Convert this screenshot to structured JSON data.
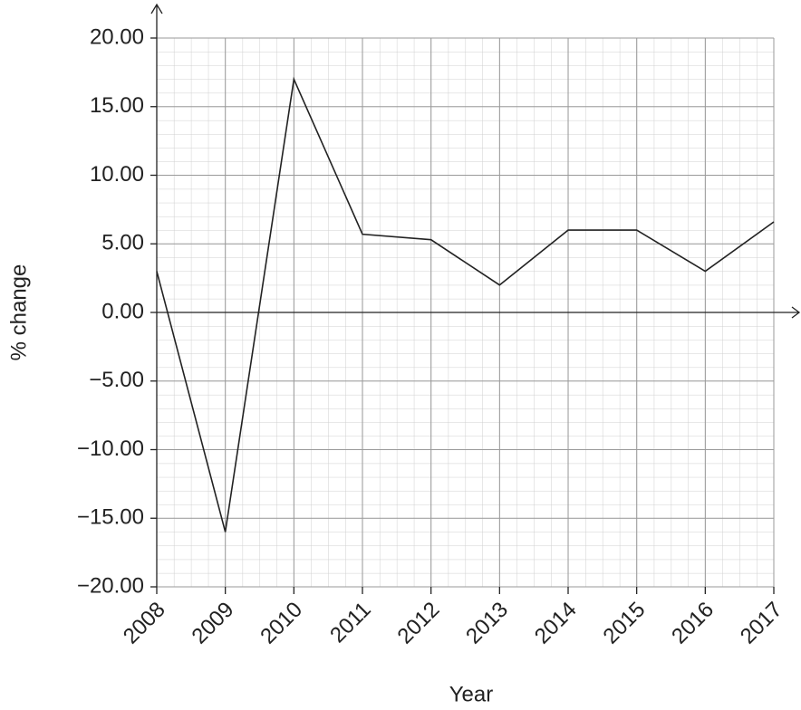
{
  "chart_data": {
    "type": "line",
    "x_label": "Year",
    "y_label": "% change",
    "categories": [
      "2008",
      "2009",
      "2010",
      "2011",
      "2012",
      "2013",
      "2014",
      "2015",
      "2016",
      "2017"
    ],
    "values": [
      3,
      -16,
      17,
      5.7,
      5.3,
      2,
      6,
      6,
      3,
      6.6
    ],
    "color": "#222222",
    "ylim": [
      -20,
      20
    ],
    "yticks": [
      {
        "value": -20,
        "label": "−20.00"
      },
      {
        "value": -15,
        "label": "−15.00"
      },
      {
        "value": -10,
        "label": "−10.00"
      },
      {
        "value": -5,
        "label": "−5.00"
      },
      {
        "value": 0,
        "label": "0.00"
      },
      {
        "value": 5,
        "label": "5.00"
      },
      {
        "value": 10,
        "label": "10.00"
      },
      {
        "value": 15,
        "label": "15.00"
      },
      {
        "value": 20,
        "label": "20.00"
      }
    ],
    "grid": true
  }
}
